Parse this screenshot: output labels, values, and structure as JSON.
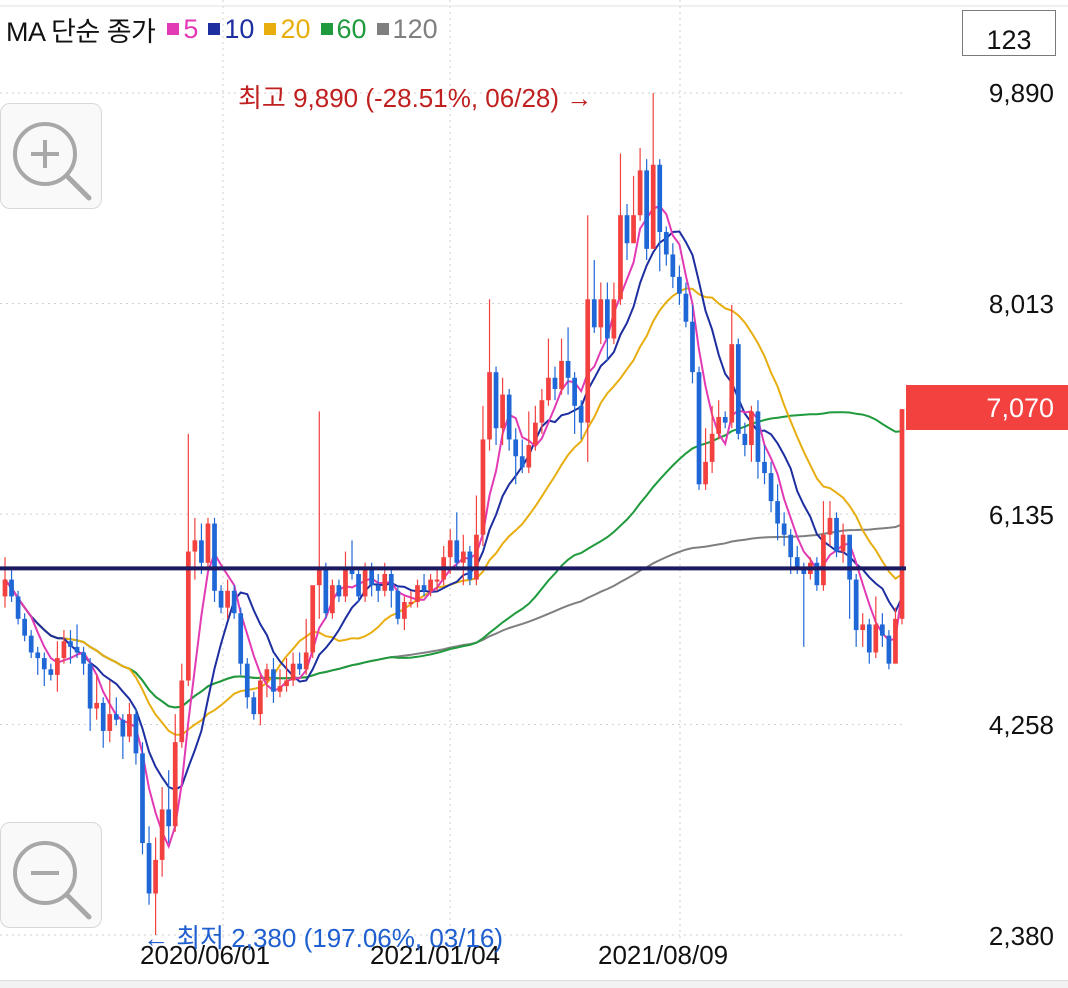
{
  "legend": {
    "title": "MA 단순 종가",
    "items": [
      {
        "label": "5",
        "color": "#e23ab4"
      },
      {
        "label": "10",
        "color": "#1d2ea0"
      },
      {
        "label": "20",
        "color": "#e8ae10"
      },
      {
        "label": "60",
        "color": "#1f9a3c"
      },
      {
        "label": "120",
        "color": "#7f7f7f"
      }
    ]
  },
  "count_box": "123",
  "current_price": "7,070",
  "annotations": {
    "high": "최고 9,890 (-28.51%, 06/28) →",
    "low": "← 최저 2,380 (197.06%, 03/16)"
  },
  "chart_data": {
    "type": "candlestick",
    "y_ticks": [
      "9,890",
      "8,013",
      "6,135",
      "4,258",
      "2,380"
    ],
    "x_ticks": [
      "2020/06/01",
      "2021/01/04",
      "2021/08/09"
    ],
    "ylim": [
      2380,
      9890
    ],
    "current": 7070,
    "high": 9890,
    "low": 2380,
    "horizontal_line": 5650,
    "colors": {
      "up": "#f2413f",
      "down": "#1f67d6"
    },
    "candles": [
      [
        5400,
        5550,
        5750,
        5300
      ],
      [
        5550,
        5400,
        5650,
        5350
      ],
      [
        5400,
        5200,
        5450,
        5150
      ],
      [
        5200,
        5050,
        5250,
        5000
      ],
      [
        5050,
        4900,
        5100,
        4850
      ],
      [
        4900,
        4850,
        4950,
        4700
      ],
      [
        4850,
        4750,
        4900,
        4600
      ],
      [
        4750,
        4700,
        4800,
        4650
      ],
      [
        4700,
        4850,
        5000,
        4550
      ],
      [
        4850,
        5000,
        5100,
        4800
      ],
      [
        5000,
        4950,
        5100,
        4800
      ],
      [
        4950,
        4900,
        5150,
        4850
      ],
      [
        4900,
        4800,
        4950,
        4700
      ],
      [
        4800,
        4400,
        4850,
        4200
      ],
      [
        4400,
        4450,
        4700,
        4300
      ],
      [
        4450,
        4200,
        4500,
        4050
      ],
      [
        4200,
        4350,
        4650,
        4100
      ],
      [
        4350,
        4300,
        4500,
        4250
      ],
      [
        4300,
        4150,
        4350,
        3950
      ],
      [
        4150,
        4350,
        4450,
        4100
      ],
      [
        4350,
        4000,
        4400,
        3900
      ],
      [
        4000,
        3200,
        4100,
        3100
      ],
      [
        3200,
        2750,
        3350,
        2650
      ],
      [
        2750,
        3050,
        3250,
        2380
      ],
      [
        3050,
        3500,
        3700,
        2900
      ],
      [
        3500,
        3350,
        3850,
        3200
      ],
      [
        3350,
        4100,
        4350,
        3300
      ],
      [
        4100,
        4650,
        4800,
        4050
      ],
      [
        4650,
        5800,
        6850,
        4600
      ],
      [
        5800,
        5900,
        6100,
        5550
      ],
      [
        5900,
        5700,
        6050,
        5600
      ],
      [
        5700,
        6050,
        6100,
        5650
      ],
      [
        6050,
        5450,
        6100,
        5350
      ],
      [
        5450,
        5300,
        5500,
        5250
      ],
      [
        5300,
        5450,
        5550,
        5200
      ],
      [
        5450,
        5250,
        5500,
        5200
      ],
      [
        5250,
        4800,
        5300,
        4700
      ],
      [
        4800,
        4500,
        4850,
        4400
      ],
      [
        4500,
        4350,
        4550,
        4300
      ],
      [
        4350,
        4650,
        4700,
        4250
      ],
      [
        4650,
        4750,
        4800,
        4500
      ],
      [
        4750,
        4550,
        4850,
        4450
      ],
      [
        4550,
        4600,
        4750,
        4500
      ],
      [
        4600,
        4650,
        4850,
        4550
      ],
      [
        4650,
        4800,
        4900,
        4600
      ],
      [
        4800,
        4750,
        4900,
        4700
      ],
      [
        4750,
        4900,
        5200,
        4700
      ],
      [
        4900,
        5500,
        5250,
        4850
      ],
      [
        5500,
        5650,
        7050,
        5200
      ],
      [
        5650,
        5250,
        5700,
        5200
      ],
      [
        5250,
        5500,
        5550,
        5200
      ],
      [
        5500,
        5400,
        5550,
        5350
      ],
      [
        5400,
        5650,
        5800,
        5350
      ],
      [
        5650,
        5600,
        5900,
        5550
      ],
      [
        5600,
        5400,
        5650,
        5350
      ],
      [
        5400,
        5650,
        5700,
        5350
      ],
      [
        5650,
        5500,
        5700,
        5400
      ],
      [
        5500,
        5450,
        5600,
        5350
      ],
      [
        5450,
        5600,
        5700,
        5400
      ],
      [
        5600,
        5450,
        5650,
        5300
      ],
      [
        5450,
        5200,
        5500,
        5150
      ],
      [
        5200,
        5350,
        5400,
        5100
      ],
      [
        5350,
        5350,
        5450,
        5300
      ],
      [
        5350,
        5500,
        5550,
        5300
      ],
      [
        5500,
        5450,
        5600,
        5400
      ],
      [
        5450,
        5550,
        5600,
        5400
      ],
      [
        5550,
        5550,
        5650,
        5450
      ],
      [
        5550,
        5750,
        5850,
        5500
      ],
      [
        5750,
        5900,
        6000,
        5600
      ],
      [
        5900,
        5700,
        6150,
        5650
      ],
      [
        5700,
        5800,
        5950,
        5500
      ],
      [
        5800,
        5550,
        5850,
        5500
      ],
      [
        5550,
        5950,
        6300,
        5500
      ],
      [
        5950,
        6800,
        7100,
        5850
      ],
      [
        6800,
        7400,
        8050,
        6700
      ],
      [
        7400,
        6900,
        7450,
        6750
      ],
      [
        6900,
        7200,
        7350,
        6750
      ],
      [
        7200,
        6800,
        7250,
        6700
      ],
      [
        6800,
        6650,
        6900,
        6400
      ],
      [
        6650,
        6550,
        6800,
        6500
      ],
      [
        6550,
        6750,
        7050,
        6500
      ],
      [
        6750,
        6950,
        7100,
        6700
      ],
      [
        6950,
        7150,
        7250,
        6850
      ],
      [
        7150,
        7350,
        7700,
        7100
      ],
      [
        7350,
        7250,
        7450,
        7150
      ],
      [
        7250,
        7500,
        7700,
        7200
      ],
      [
        7500,
        7350,
        7800,
        7200
      ],
      [
        7350,
        7100,
        7400,
        6850
      ],
      [
        7100,
        6950,
        7150,
        6800
      ],
      [
        6950,
        8050,
        8800,
        6600
      ],
      [
        8050,
        7800,
        8400,
        7750
      ],
      [
        7800,
        8050,
        8200,
        7650
      ],
      [
        8050,
        7700,
        8200,
        7500
      ],
      [
        7700,
        8050,
        8200,
        7650
      ],
      [
        8050,
        8800,
        9350,
        8000
      ],
      [
        8800,
        8550,
        8900,
        8400
      ],
      [
        8550,
        8800,
        9150,
        8550
      ],
      [
        8800,
        9200,
        9400,
        8750
      ],
      [
        9200,
        8500,
        9300,
        8400
      ],
      [
        8500,
        9250,
        9890,
        8500
      ],
      [
        9250,
        8650,
        9300,
        8300
      ],
      [
        8650,
        8450,
        8700,
        8350
      ],
      [
        8450,
        8250,
        8550,
        8150
      ],
      [
        8250,
        8100,
        8350,
        8000
      ],
      [
        8100,
        7850,
        8200,
        7800
      ],
      [
        7850,
        7400,
        8000,
        7300
      ],
      [
        7400,
        6400,
        7450,
        6350
      ],
      [
        6400,
        6600,
        6900,
        6350
      ],
      [
        6600,
        6850,
        7100,
        6500
      ],
      [
        6850,
        7000,
        7150,
        6800
      ],
      [
        7000,
        6950,
        7050,
        6900
      ],
      [
        6950,
        7650,
        8000,
        6900
      ],
      [
        7650,
        6850,
        7700,
        6800
      ],
      [
        6850,
        6750,
        6950,
        6650
      ],
      [
        6750,
        7050,
        7100,
        6600
      ],
      [
        7050,
        6600,
        7150,
        6450
      ],
      [
        6600,
        6500,
        6750,
        6400
      ],
      [
        6500,
        6250,
        6600,
        6150
      ],
      [
        6250,
        6050,
        6400,
        5900
      ],
      [
        6050,
        5950,
        6150,
        5850
      ],
      [
        5950,
        5750,
        6000,
        5600
      ],
      [
        5750,
        5650,
        5850,
        5600
      ],
      [
        5650,
        5600,
        5700,
        4950
      ],
      [
        5600,
        5700,
        5750,
        5550
      ],
      [
        5700,
        5500,
        5750,
        5450
      ],
      [
        5500,
        5950,
        6250,
        5450
      ],
      [
        5950,
        6100,
        6250,
        5850
      ],
      [
        6100,
        5800,
        6150,
        5750
      ],
      [
        5800,
        5950,
        6050,
        5700
      ],
      [
        5950,
        5550,
        5950,
        5200
      ],
      [
        5550,
        5100,
        5600,
        4950
      ],
      [
        5100,
        5150,
        5250,
        4950
      ],
      [
        5150,
        4900,
        5200,
        4800
      ],
      [
        4900,
        5150,
        5400,
        4850
      ],
      [
        5150,
        5050,
        5250,
        4950
      ],
      [
        5050,
        4800,
        5100,
        4750
      ],
      [
        4800,
        5200,
        5300,
        4850
      ],
      [
        5200,
        7070,
        7070,
        5150
      ]
    ]
  }
}
